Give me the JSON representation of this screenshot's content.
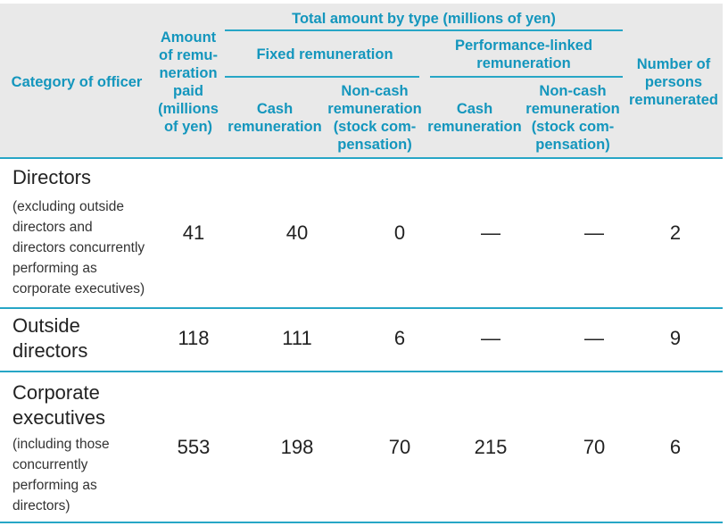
{
  "header": {
    "category": "Category of officer",
    "amount_paid": "Amount\nof remu-\nneration\npaid\n(millions\nof yen)",
    "total_by_type": "Total amount by type (millions of yen)",
    "fixed": "Fixed remuneration",
    "performance": "Performance-linked\nremuneration",
    "cash": "Cash\nremuneration",
    "noncash": "Non-cash\nremuneration\n(stock com-\npensation)",
    "persons": "Number of\npersons\nremunerated"
  },
  "rows": [
    {
      "category": "Directors",
      "note": "(excluding outside\ndirectors and\ndirectors concurrently\nperforming as\ncorporate executives)",
      "amount": "41",
      "fixed_cash": "40",
      "fixed_noncash": "0",
      "perf_cash": "—",
      "perf_noncash": "—",
      "persons": "2"
    },
    {
      "category": "Outside\ndirectors",
      "note": "",
      "amount": "118",
      "fixed_cash": "111",
      "fixed_noncash": "6",
      "perf_cash": "—",
      "perf_noncash": "—",
      "persons": "9"
    },
    {
      "category": "Corporate\nexecutives",
      "note": "(including those\nconcurrently\nperforming as\ndirectors)",
      "amount": "553",
      "fixed_cash": "198",
      "fixed_noncash": "70",
      "perf_cash": "215",
      "perf_noncash": "70",
      "persons": "6"
    }
  ]
}
